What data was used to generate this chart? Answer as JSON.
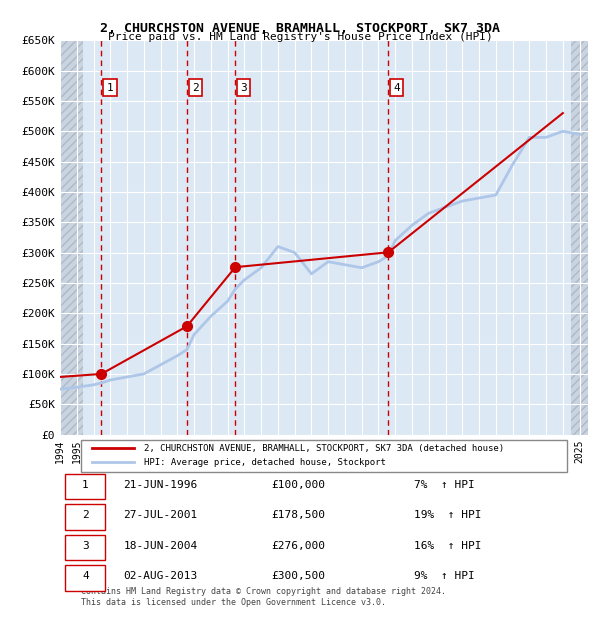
{
  "title": "2, CHURCHSTON AVENUE, BRAMHALL, STOCKPORT, SK7 3DA",
  "subtitle": "Price paid vs. HM Land Registry's House Price Index (HPI)",
  "ylabel": "",
  "ylim": [
    0,
    650000
  ],
  "yticks": [
    0,
    50000,
    100000,
    150000,
    200000,
    250000,
    300000,
    350000,
    400000,
    450000,
    500000,
    550000,
    600000,
    650000
  ],
  "ytick_labels": [
    "£0",
    "£50K",
    "£100K",
    "£150K",
    "£200K",
    "£250K",
    "£300K",
    "£350K",
    "£400K",
    "£450K",
    "£500K",
    "£550K",
    "£600K",
    "£650K"
  ],
  "xlim_start": 1994.0,
  "xlim_end": 2025.5,
  "sale_events": [
    {
      "num": 1,
      "date": "21-JUN-1996",
      "year": 1996.47,
      "price": 100000,
      "pct": "7%",
      "label": "1"
    },
    {
      "num": 2,
      "date": "27-JUL-2001",
      "year": 2001.57,
      "price": 178500,
      "pct": "19%",
      "label": "2"
    },
    {
      "num": 3,
      "date": "18-JUN-2004",
      "year": 2004.46,
      "price": 276000,
      "pct": "16%",
      "label": "3"
    },
    {
      "num": 4,
      "date": "02-AUG-2013",
      "year": 2013.59,
      "price": 300500,
      "pct": "9%",
      "label": "4"
    }
  ],
  "hpi_line_color": "#aec6e8",
  "sale_line_color": "#cc0000",
  "sale_marker_color": "#cc0000",
  "vline_color": "#cc0000",
  "bg_color": "#dce9f5",
  "hatch_color": "#b0b8c8",
  "grid_color": "#ffffff",
  "legend_label_red": "2, CHURCHSTON AVENUE, BRAMHALL, STOCKPORT, SK7 3DA (detached house)",
  "legend_label_blue": "HPI: Average price, detached house, Stockport",
  "copyright": "Contains HM Land Registry data © Crown copyright and database right 2024.\nThis data is licensed under the Open Government Licence v3.0.",
  "hpi_years": [
    1994,
    1995,
    1996,
    1996.47,
    1997,
    1998,
    1999,
    2000,
    2001,
    2001.57,
    2002,
    2003,
    2004,
    2004.46,
    2005,
    2006,
    2007,
    2008,
    2009,
    2010,
    2011,
    2012,
    2013,
    2013.59,
    2014,
    2015,
    2016,
    2017,
    2018,
    2019,
    2020,
    2021,
    2022,
    2023,
    2024,
    2025
  ],
  "hpi_values": [
    75000,
    78000,
    82000,
    85000,
    90000,
    95000,
    100000,
    115000,
    130000,
    140000,
    165000,
    195000,
    220000,
    240000,
    255000,
    275000,
    310000,
    300000,
    265000,
    285000,
    280000,
    275000,
    285000,
    295000,
    320000,
    345000,
    365000,
    375000,
    385000,
    390000,
    395000,
    445000,
    490000,
    490000,
    500000,
    495000
  ],
  "sale_line_years": [
    1994,
    1996.47,
    2001.57,
    2004.46,
    2013.59,
    2024
  ],
  "sale_line_values": [
    95000,
    100000,
    178500,
    276000,
    300500,
    530000
  ]
}
